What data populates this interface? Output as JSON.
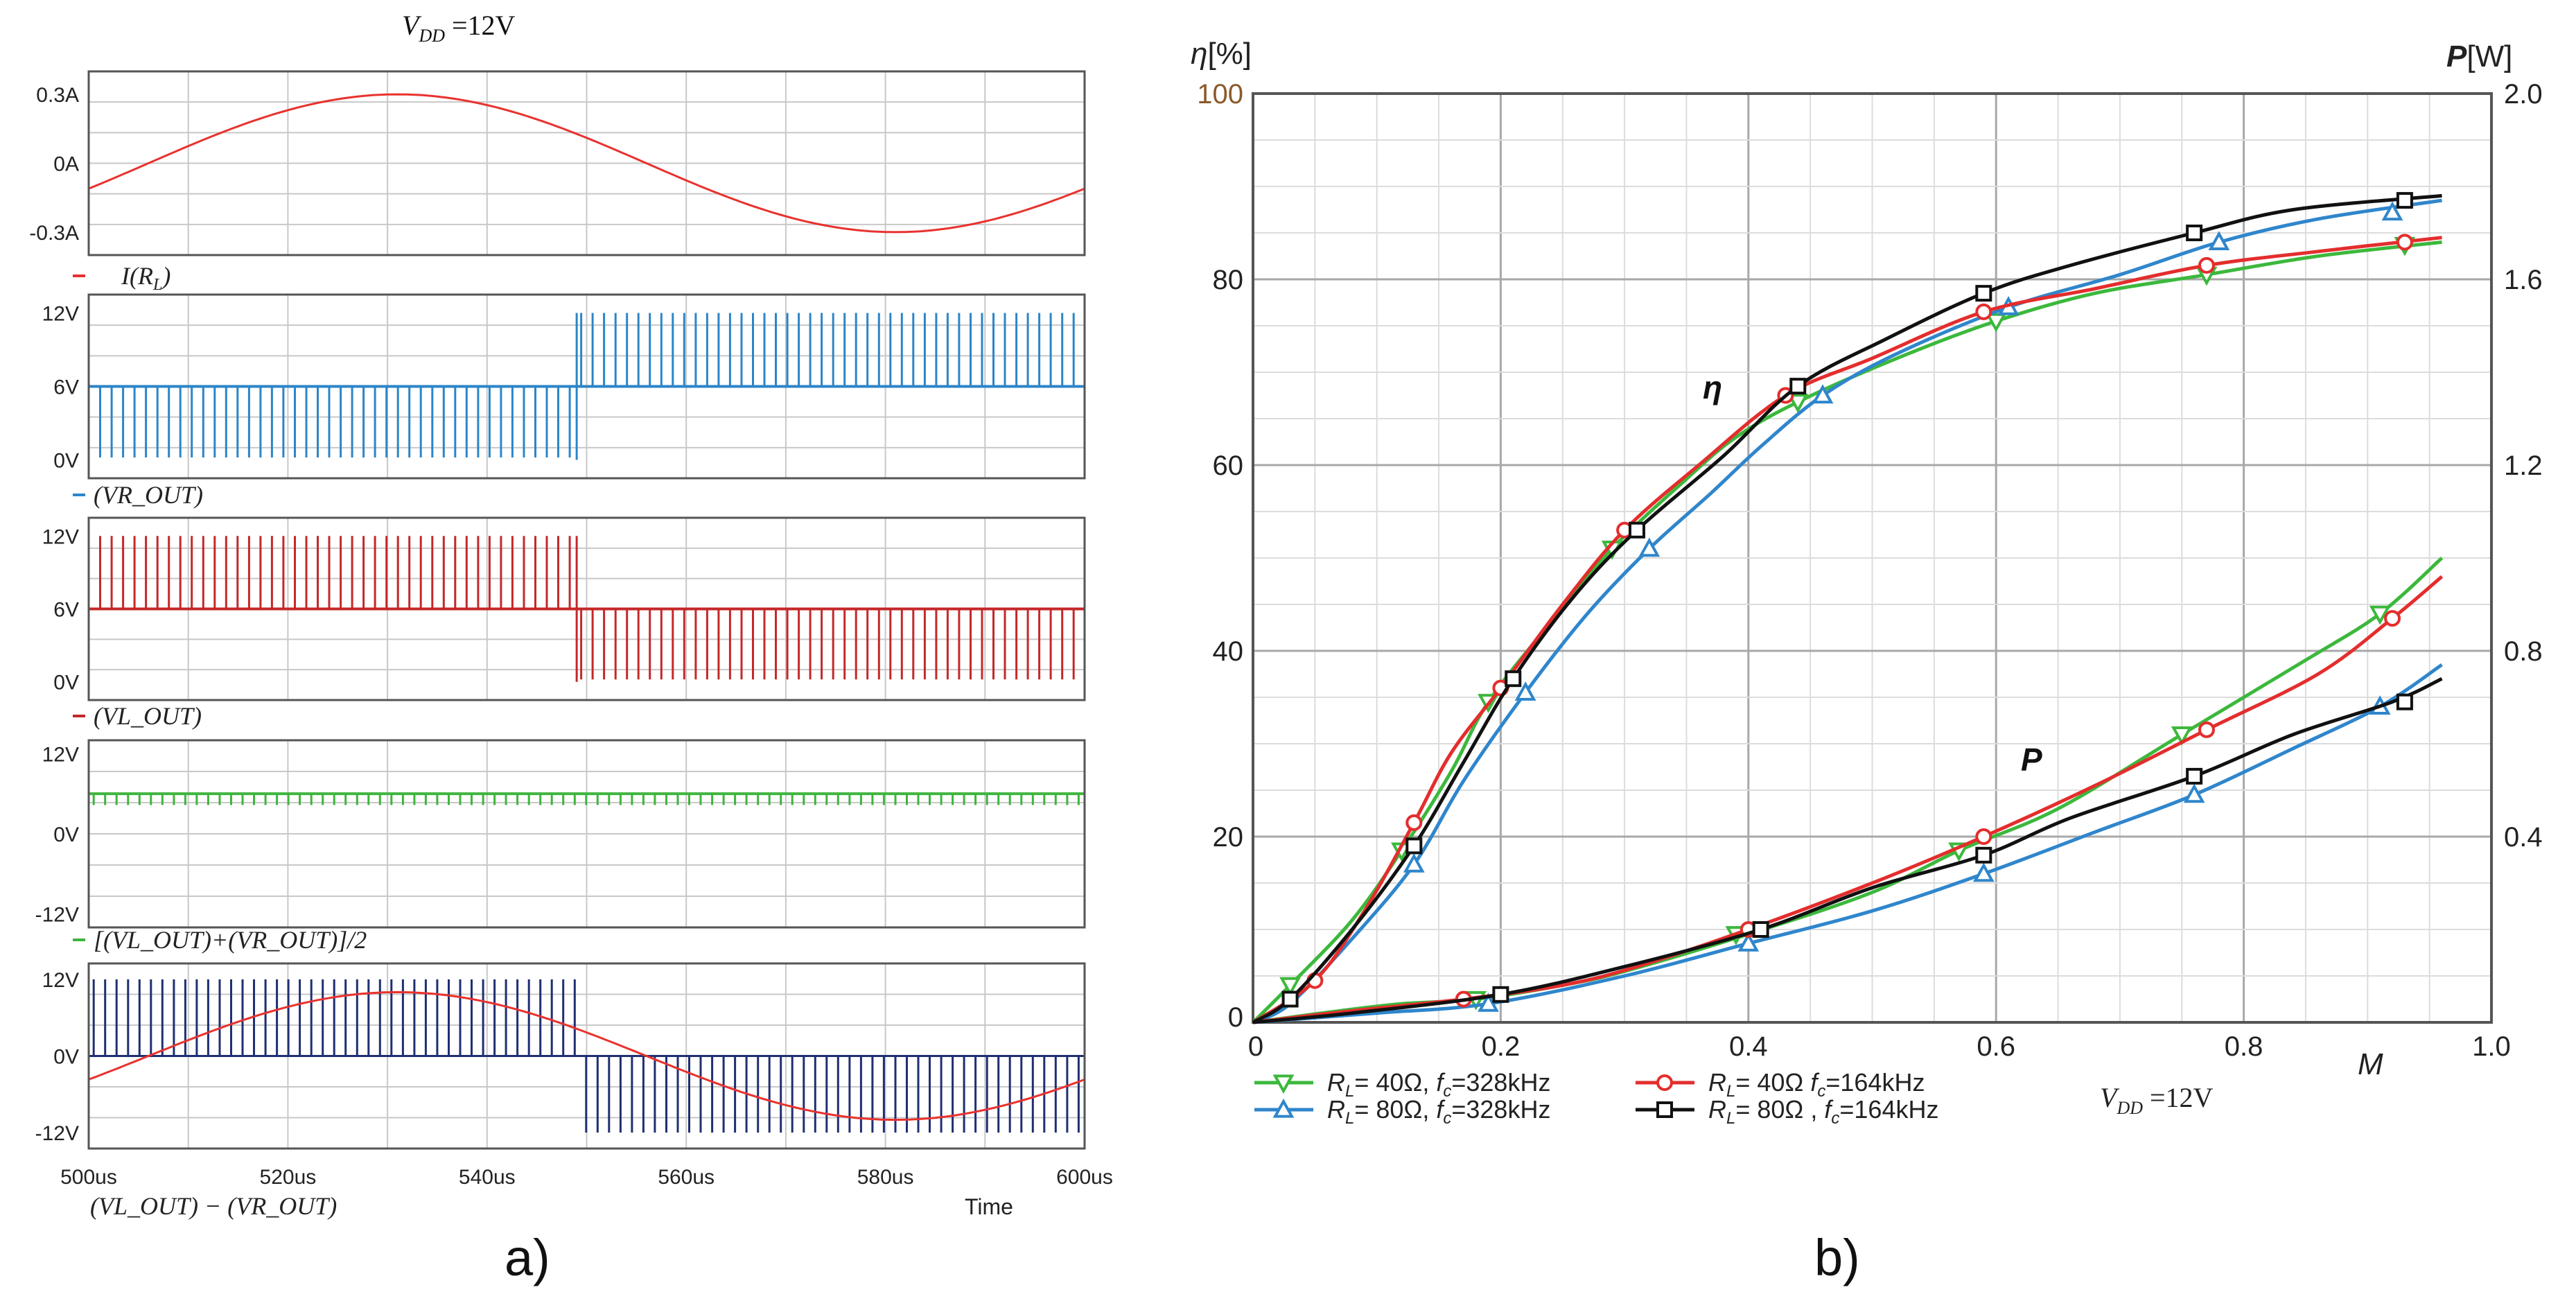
{
  "panel_a": {
    "label": "a)",
    "header": "V_DD = 12V",
    "header_sub": "DD",
    "time_label": "Time",
    "time_ticks": [
      "500us",
      "520us",
      "540us",
      "560us",
      "580us",
      "600us"
    ],
    "time_range_us": [
      500,
      600
    ],
    "switch_time_us": 549,
    "colors": {
      "red": "#e8322e",
      "blue": "#2c85c8",
      "dark_red": "#c4282a",
      "green": "#3fb43f",
      "navy": "#1f2f72",
      "grid": "#c8c8c8",
      "frame": "#555555"
    },
    "traces": [
      {
        "name": "current",
        "y_ticks": [
          "0.3A",
          "0A",
          "-0.3A"
        ],
        "y_values": [
          0.3,
          0,
          -0.3
        ],
        "ylim": [
          -0.4,
          0.4
        ],
        "legend": "I(R_L)",
        "legend_color": "#e8322e"
      },
      {
        "name": "vr-out",
        "y_ticks": [
          "12V",
          "6V",
          "0V"
        ],
        "y_values": [
          12,
          6,
          0
        ],
        "ylim": [
          -1.5,
          13.5
        ],
        "legend": "(VR_OUT)",
        "legend_color": "#2c85c8"
      },
      {
        "name": "vl-out",
        "y_ticks": [
          "12V",
          "6V",
          "0V"
        ],
        "y_values": [
          12,
          6,
          0
        ],
        "ylim": [
          -1.5,
          13.5
        ],
        "legend": "(VL_OUT)",
        "legend_color": "#c4282a"
      },
      {
        "name": "common-mode",
        "y_ticks": [
          "12V",
          "0V",
          "-12V"
        ],
        "y_values": [
          12,
          0,
          -12
        ],
        "ylim": [
          -14,
          14
        ],
        "legend": "[(VL_OUT)+(VR_OUT)]/2",
        "legend_color": "#3fb43f"
      },
      {
        "name": "differential",
        "y_ticks": [
          "12V",
          "0V",
          "-12V"
        ],
        "y_values": [
          12,
          0,
          -12
        ],
        "ylim": [
          -14.5,
          14.5
        ],
        "legend": "(VL_OUT)-(VR_OUT)",
        "legend_color": "#1f2f72"
      }
    ]
  },
  "chart_data": {
    "type": "line",
    "label": "b)",
    "xlabel": "M",
    "ylabel_left": "η[%]",
    "ylabel_right": "P[W]",
    "xlim": [
      0,
      1.0
    ],
    "ylim_left": [
      0,
      100
    ],
    "ylim_right": [
      0,
      2.0
    ],
    "x_ticks": [
      "0",
      "0.2",
      "0.4",
      "0.6",
      "0.8",
      "1.0"
    ],
    "y_left_ticks": [
      "0",
      "20",
      "40",
      "60",
      "80",
      "100"
    ],
    "y_right_ticks": [
      "0.4",
      "0.8",
      "1.2",
      "1.6",
      "2.0"
    ],
    "grid": true,
    "annotation": "V_DD = 12V",
    "curve_labels": {
      "efficiency": "η",
      "power": "P"
    },
    "series": [
      {
        "name": "R_L= 40Ω, f_c=328kHz",
        "legend_r": "= 40Ω,",
        "legend_f": "=328kHz",
        "color": "#3cb83c",
        "marker": "triangle-down",
        "eta": [
          [
            0,
            0
          ],
          [
            0.03,
            4
          ],
          [
            0.08,
            11
          ],
          [
            0.12,
            18.5
          ],
          [
            0.16,
            27
          ],
          [
            0.19,
            34.5
          ],
          [
            0.24,
            43
          ],
          [
            0.29,
            51
          ],
          [
            0.35,
            58.5
          ],
          [
            0.39,
            63
          ],
          [
            0.44,
            66.8
          ],
          [
            0.52,
            71.5
          ],
          [
            0.6,
            75.5
          ],
          [
            0.68,
            78.5
          ],
          [
            0.77,
            80.5
          ],
          [
            0.86,
            82.5
          ],
          [
            0.96,
            84
          ]
        ],
        "power": [
          [
            0,
            0
          ],
          [
            0.07,
            0.025
          ],
          [
            0.12,
            0.04
          ],
          [
            0.18,
            0.05
          ],
          [
            0.25,
            0.08
          ],
          [
            0.3,
            0.11
          ],
          [
            0.4,
            0.19
          ],
          [
            0.5,
            0.28
          ],
          [
            0.57,
            0.37
          ],
          [
            0.65,
            0.46
          ],
          [
            0.75,
            0.62
          ],
          [
            0.85,
            0.78
          ],
          [
            0.91,
            0.88
          ],
          [
            0.96,
            1.0
          ]
        ],
        "eta_markers": [
          [
            0.03,
            4
          ],
          [
            0.12,
            18.5
          ],
          [
            0.19,
            34.5
          ],
          [
            0.29,
            51
          ],
          [
            0.44,
            66.8
          ],
          [
            0.6,
            75.5
          ],
          [
            0.77,
            80.5
          ],
          [
            0.93,
            83.7
          ]
        ],
        "power_markers": [
          [
            0.18,
            0.05
          ],
          [
            0.39,
            0.19
          ],
          [
            0.57,
            0.37
          ],
          [
            0.75,
            0.62
          ],
          [
            0.91,
            0.88
          ]
        ]
      },
      {
        "name": "R_L= 80Ω, f_c=328kHz",
        "legend_r": "= 80Ω,",
        "legend_f": "=328kHz",
        "color": "#2f86cc",
        "marker": "triangle-up",
        "eta": [
          [
            0,
            0
          ],
          [
            0.03,
            2
          ],
          [
            0.08,
            9
          ],
          [
            0.13,
            17
          ],
          [
            0.17,
            26
          ],
          [
            0.22,
            35.5
          ],
          [
            0.27,
            44
          ],
          [
            0.32,
            51
          ],
          [
            0.37,
            57
          ],
          [
            0.41,
            62
          ],
          [
            0.46,
            67.5
          ],
          [
            0.52,
            72
          ],
          [
            0.61,
            77
          ],
          [
            0.7,
            80.5
          ],
          [
            0.78,
            84
          ],
          [
            0.86,
            86.5
          ],
          [
            0.96,
            88.5
          ]
        ],
        "power": [
          [
            0,
            0
          ],
          [
            0.1,
            0.02
          ],
          [
            0.19,
            0.04
          ],
          [
            0.3,
            0.1
          ],
          [
            0.4,
            0.17
          ],
          [
            0.5,
            0.24
          ],
          [
            0.59,
            0.32
          ],
          [
            0.68,
            0.41
          ],
          [
            0.76,
            0.49
          ],
          [
            0.84,
            0.59
          ],
          [
            0.91,
            0.68
          ],
          [
            0.96,
            0.77
          ]
        ],
        "eta_markers": [
          [
            0.13,
            17
          ],
          [
            0.22,
            35.5
          ],
          [
            0.32,
            51
          ],
          [
            0.46,
            67.5
          ],
          [
            0.61,
            77
          ],
          [
            0.78,
            84
          ],
          [
            0.92,
            87.2
          ]
        ],
        "power_markers": [
          [
            0.19,
            0.04
          ],
          [
            0.4,
            0.17
          ],
          [
            0.59,
            0.32
          ],
          [
            0.76,
            0.49
          ],
          [
            0.91,
            0.68
          ]
        ]
      },
      {
        "name": "R_L= 40Ω, f_c=164kHz",
        "legend_r": "= 40Ω",
        "legend_f": "=164kHz",
        "color": "#e42d2d",
        "marker": "circle",
        "eta": [
          [
            0,
            0
          ],
          [
            0.05,
            4.5
          ],
          [
            0.09,
            12
          ],
          [
            0.13,
            21.5
          ],
          [
            0.16,
            29
          ],
          [
            0.2,
            36
          ],
          [
            0.25,
            45
          ],
          [
            0.3,
            53
          ],
          [
            0.36,
            60
          ],
          [
            0.43,
            67.5
          ],
          [
            0.5,
            71.5
          ],
          [
            0.59,
            76.5
          ],
          [
            0.68,
            79
          ],
          [
            0.77,
            81.5
          ],
          [
            0.86,
            83
          ],
          [
            0.96,
            84.5
          ]
        ],
        "power": [
          [
            0,
            0
          ],
          [
            0.08,
            0.025
          ],
          [
            0.17,
            0.05
          ],
          [
            0.25,
            0.08
          ],
          [
            0.31,
            0.12
          ],
          [
            0.4,
            0.2
          ],
          [
            0.5,
            0.3
          ],
          [
            0.59,
            0.4
          ],
          [
            0.68,
            0.51
          ],
          [
            0.77,
            0.63
          ],
          [
            0.86,
            0.75
          ],
          [
            0.92,
            0.87
          ],
          [
            0.96,
            0.96
          ]
        ],
        "eta_markers": [
          [
            0.05,
            4.5
          ],
          [
            0.13,
            21.5
          ],
          [
            0.2,
            36
          ],
          [
            0.3,
            53
          ],
          [
            0.43,
            67.5
          ],
          [
            0.59,
            76.5
          ],
          [
            0.77,
            81.5
          ],
          [
            0.93,
            84
          ]
        ],
        "power_markers": [
          [
            0.17,
            0.05
          ],
          [
            0.4,
            0.2
          ],
          [
            0.59,
            0.4
          ],
          [
            0.77,
            0.63
          ],
          [
            0.92,
            0.87
          ]
        ]
      },
      {
        "name": "R_L= 80Ω, f_c=164kHz",
        "legend_r": "= 80Ω ,",
        "legend_f": "=164kHz",
        "color": "#111111",
        "marker": "square",
        "eta": [
          [
            0,
            0
          ],
          [
            0.03,
            2.5
          ],
          [
            0.08,
            10
          ],
          [
            0.13,
            19
          ],
          [
            0.17,
            28
          ],
          [
            0.21,
            37
          ],
          [
            0.26,
            46
          ],
          [
            0.31,
            53
          ],
          [
            0.38,
            61
          ],
          [
            0.44,
            68.5
          ],
          [
            0.51,
            73.5
          ],
          [
            0.59,
            78.5
          ],
          [
            0.66,
            81.5
          ],
          [
            0.76,
            85
          ],
          [
            0.84,
            87.5
          ],
          [
            0.96,
            89
          ]
        ],
        "power": [
          [
            0,
            0
          ],
          [
            0.08,
            0.02
          ],
          [
            0.2,
            0.06
          ],
          [
            0.3,
            0.12
          ],
          [
            0.41,
            0.2
          ],
          [
            0.5,
            0.29
          ],
          [
            0.59,
            0.36
          ],
          [
            0.66,
            0.44
          ],
          [
            0.76,
            0.53
          ],
          [
            0.84,
            0.62
          ],
          [
            0.92,
            0.69
          ],
          [
            0.96,
            0.74
          ]
        ],
        "eta_markers": [
          [
            0.03,
            2.5
          ],
          [
            0.13,
            19
          ],
          [
            0.21,
            37
          ],
          [
            0.31,
            53
          ],
          [
            0.44,
            68.5
          ],
          [
            0.59,
            78.5
          ],
          [
            0.76,
            85
          ],
          [
            0.93,
            88.5
          ]
        ],
        "power_markers": [
          [
            0.2,
            0.06
          ],
          [
            0.41,
            0.2
          ],
          [
            0.59,
            0.36
          ],
          [
            0.76,
            0.53
          ],
          [
            0.93,
            0.69
          ]
        ]
      }
    ]
  }
}
